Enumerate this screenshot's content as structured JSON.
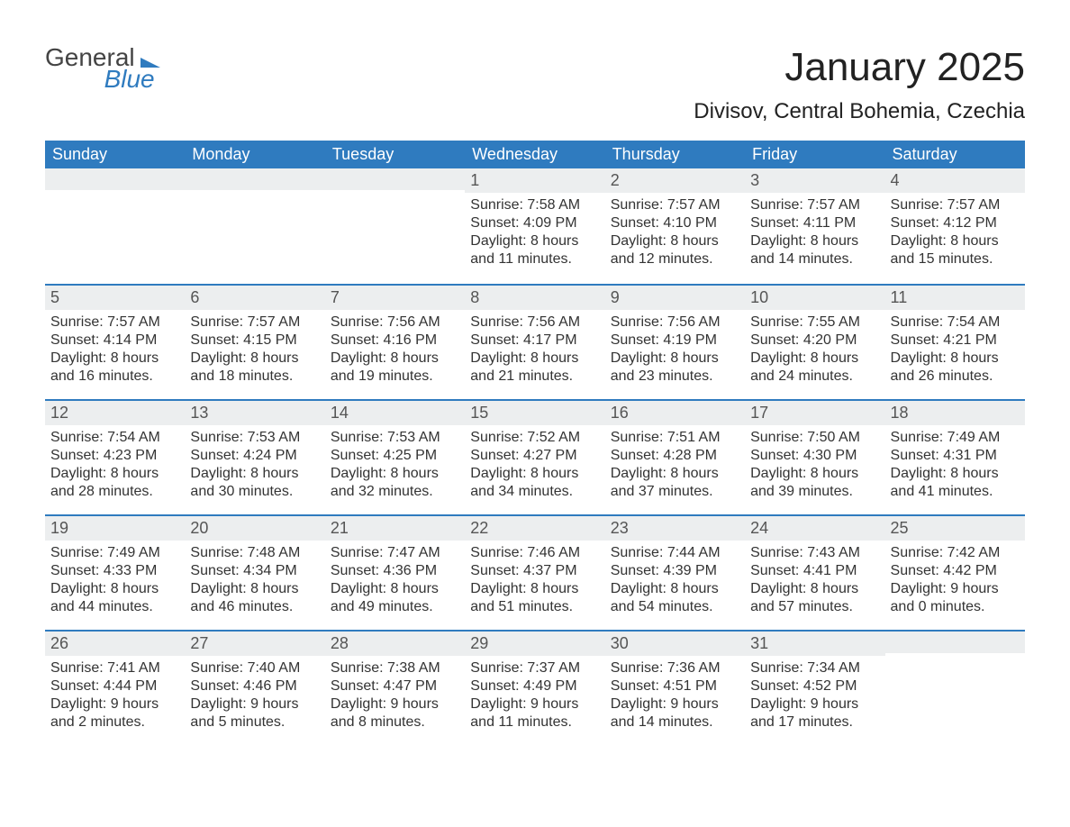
{
  "logo": {
    "word1": "General",
    "word2": "Blue"
  },
  "title": "January 2025",
  "subtitle": "Divisov, Central Bohemia, Czechia",
  "colors": {
    "header_blue": "#2f7bbf",
    "band_grey": "#eceeef",
    "text": "#333333",
    "title_text": "#222222",
    "white": "#ffffff"
  },
  "font_sizes": {
    "title": 44,
    "subtitle": 24,
    "dow": 18,
    "daynum": 18,
    "body": 16
  },
  "days_of_week": [
    "Sunday",
    "Monday",
    "Tuesday",
    "Wednesday",
    "Thursday",
    "Friday",
    "Saturday"
  ],
  "weeks": [
    [
      {
        "blank": true
      },
      {
        "blank": true
      },
      {
        "blank": true
      },
      {
        "n": "1",
        "sunrise": "Sunrise: 7:58 AM",
        "sunset": "Sunset: 4:09 PM",
        "d1": "Daylight: 8 hours",
        "d2": "and 11 minutes."
      },
      {
        "n": "2",
        "sunrise": "Sunrise: 7:57 AM",
        "sunset": "Sunset: 4:10 PM",
        "d1": "Daylight: 8 hours",
        "d2": "and 12 minutes."
      },
      {
        "n": "3",
        "sunrise": "Sunrise: 7:57 AM",
        "sunset": "Sunset: 4:11 PM",
        "d1": "Daylight: 8 hours",
        "d2": "and 14 minutes."
      },
      {
        "n": "4",
        "sunrise": "Sunrise: 7:57 AM",
        "sunset": "Sunset: 4:12 PM",
        "d1": "Daylight: 8 hours",
        "d2": "and 15 minutes."
      }
    ],
    [
      {
        "n": "5",
        "sunrise": "Sunrise: 7:57 AM",
        "sunset": "Sunset: 4:14 PM",
        "d1": "Daylight: 8 hours",
        "d2": "and 16 minutes."
      },
      {
        "n": "6",
        "sunrise": "Sunrise: 7:57 AM",
        "sunset": "Sunset: 4:15 PM",
        "d1": "Daylight: 8 hours",
        "d2": "and 18 minutes."
      },
      {
        "n": "7",
        "sunrise": "Sunrise: 7:56 AM",
        "sunset": "Sunset: 4:16 PM",
        "d1": "Daylight: 8 hours",
        "d2": "and 19 minutes."
      },
      {
        "n": "8",
        "sunrise": "Sunrise: 7:56 AM",
        "sunset": "Sunset: 4:17 PM",
        "d1": "Daylight: 8 hours",
        "d2": "and 21 minutes."
      },
      {
        "n": "9",
        "sunrise": "Sunrise: 7:56 AM",
        "sunset": "Sunset: 4:19 PM",
        "d1": "Daylight: 8 hours",
        "d2": "and 23 minutes."
      },
      {
        "n": "10",
        "sunrise": "Sunrise: 7:55 AM",
        "sunset": "Sunset: 4:20 PM",
        "d1": "Daylight: 8 hours",
        "d2": "and 24 minutes."
      },
      {
        "n": "11",
        "sunrise": "Sunrise: 7:54 AM",
        "sunset": "Sunset: 4:21 PM",
        "d1": "Daylight: 8 hours",
        "d2": "and 26 minutes."
      }
    ],
    [
      {
        "n": "12",
        "sunrise": "Sunrise: 7:54 AM",
        "sunset": "Sunset: 4:23 PM",
        "d1": "Daylight: 8 hours",
        "d2": "and 28 minutes."
      },
      {
        "n": "13",
        "sunrise": "Sunrise: 7:53 AM",
        "sunset": "Sunset: 4:24 PM",
        "d1": "Daylight: 8 hours",
        "d2": "and 30 minutes."
      },
      {
        "n": "14",
        "sunrise": "Sunrise: 7:53 AM",
        "sunset": "Sunset: 4:25 PM",
        "d1": "Daylight: 8 hours",
        "d2": "and 32 minutes."
      },
      {
        "n": "15",
        "sunrise": "Sunrise: 7:52 AM",
        "sunset": "Sunset: 4:27 PM",
        "d1": "Daylight: 8 hours",
        "d2": "and 34 minutes."
      },
      {
        "n": "16",
        "sunrise": "Sunrise: 7:51 AM",
        "sunset": "Sunset: 4:28 PM",
        "d1": "Daylight: 8 hours",
        "d2": "and 37 minutes."
      },
      {
        "n": "17",
        "sunrise": "Sunrise: 7:50 AM",
        "sunset": "Sunset: 4:30 PM",
        "d1": "Daylight: 8 hours",
        "d2": "and 39 minutes."
      },
      {
        "n": "18",
        "sunrise": "Sunrise: 7:49 AM",
        "sunset": "Sunset: 4:31 PM",
        "d1": "Daylight: 8 hours",
        "d2": "and 41 minutes."
      }
    ],
    [
      {
        "n": "19",
        "sunrise": "Sunrise: 7:49 AM",
        "sunset": "Sunset: 4:33 PM",
        "d1": "Daylight: 8 hours",
        "d2": "and 44 minutes."
      },
      {
        "n": "20",
        "sunrise": "Sunrise: 7:48 AM",
        "sunset": "Sunset: 4:34 PM",
        "d1": "Daylight: 8 hours",
        "d2": "and 46 minutes."
      },
      {
        "n": "21",
        "sunrise": "Sunrise: 7:47 AM",
        "sunset": "Sunset: 4:36 PM",
        "d1": "Daylight: 8 hours",
        "d2": "and 49 minutes."
      },
      {
        "n": "22",
        "sunrise": "Sunrise: 7:46 AM",
        "sunset": "Sunset: 4:37 PM",
        "d1": "Daylight: 8 hours",
        "d2": "and 51 minutes."
      },
      {
        "n": "23",
        "sunrise": "Sunrise: 7:44 AM",
        "sunset": "Sunset: 4:39 PM",
        "d1": "Daylight: 8 hours",
        "d2": "and 54 minutes."
      },
      {
        "n": "24",
        "sunrise": "Sunrise: 7:43 AM",
        "sunset": "Sunset: 4:41 PM",
        "d1": "Daylight: 8 hours",
        "d2": "and 57 minutes."
      },
      {
        "n": "25",
        "sunrise": "Sunrise: 7:42 AM",
        "sunset": "Sunset: 4:42 PM",
        "d1": "Daylight: 9 hours",
        "d2": "and 0 minutes."
      }
    ],
    [
      {
        "n": "26",
        "sunrise": "Sunrise: 7:41 AM",
        "sunset": "Sunset: 4:44 PM",
        "d1": "Daylight: 9 hours",
        "d2": "and 2 minutes."
      },
      {
        "n": "27",
        "sunrise": "Sunrise: 7:40 AM",
        "sunset": "Sunset: 4:46 PM",
        "d1": "Daylight: 9 hours",
        "d2": "and 5 minutes."
      },
      {
        "n": "28",
        "sunrise": "Sunrise: 7:38 AM",
        "sunset": "Sunset: 4:47 PM",
        "d1": "Daylight: 9 hours",
        "d2": "and 8 minutes."
      },
      {
        "n": "29",
        "sunrise": "Sunrise: 7:37 AM",
        "sunset": "Sunset: 4:49 PM",
        "d1": "Daylight: 9 hours",
        "d2": "and 11 minutes."
      },
      {
        "n": "30",
        "sunrise": "Sunrise: 7:36 AM",
        "sunset": "Sunset: 4:51 PM",
        "d1": "Daylight: 9 hours",
        "d2": "and 14 minutes."
      },
      {
        "n": "31",
        "sunrise": "Sunrise: 7:34 AM",
        "sunset": "Sunset: 4:52 PM",
        "d1": "Daylight: 9 hours",
        "d2": "and 17 minutes."
      },
      {
        "blank": true
      }
    ]
  ]
}
